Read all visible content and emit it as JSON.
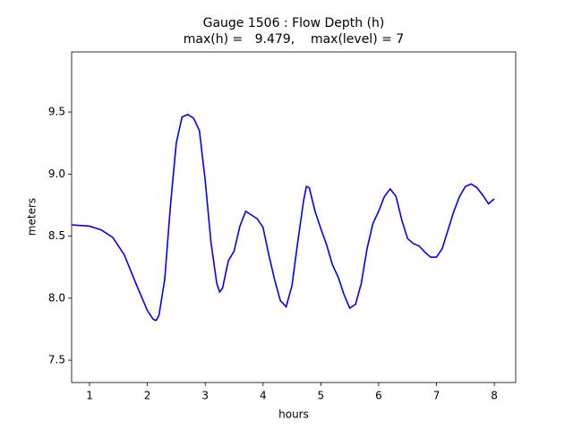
{
  "chart_data": {
    "type": "line",
    "title": "Gauge 1506 : Flow Depth (h)",
    "subtitle": "max(h) =   9.479,    max(level) = 7",
    "x_label": "hours",
    "y_label": "meters",
    "xlim": [
      0.69,
      8.37
    ],
    "ylim": [
      7.32,
      9.984
    ],
    "xticks": [
      1,
      2,
      3,
      4,
      5,
      6,
      7,
      8
    ],
    "yticks": [
      7.5,
      {
        "value": 8.0,
        "label": "8.0"
      },
      8.5,
      {
        "value": 9.0,
        "label": "9.0"
      },
      9.5
    ],
    "grid": false,
    "series": [
      {
        "name": "h",
        "color": "#0000ff",
        "x": [
          0.7,
          1.0,
          1.2,
          1.4,
          1.6,
          1.8,
          1.9,
          2.0,
          2.1,
          2.15,
          2.2,
          2.3,
          2.4,
          2.5,
          2.6,
          2.7,
          2.8,
          2.9,
          3.0,
          3.1,
          3.2,
          3.25,
          3.3,
          3.4,
          3.5,
          3.6,
          3.7,
          3.8,
          3.9,
          4.0,
          4.1,
          4.2,
          4.3,
          4.4,
          4.5,
          4.6,
          4.7,
          4.75,
          4.8,
          4.9,
          5.0,
          5.1,
          5.2,
          5.3,
          5.4,
          5.5,
          5.6,
          5.7,
          5.8,
          5.9,
          6.0,
          6.1,
          6.2,
          6.3,
          6.4,
          6.5,
          6.6,
          6.7,
          6.8,
          6.9,
          7.0,
          7.1,
          7.2,
          7.3,
          7.4,
          7.5,
          7.6,
          7.7,
          7.8,
          7.9,
          8.0
        ],
        "values": [
          8.59,
          8.58,
          8.55,
          8.49,
          8.35,
          8.12,
          8.01,
          7.9,
          7.83,
          7.82,
          7.86,
          8.15,
          8.75,
          9.25,
          9.46,
          9.48,
          9.45,
          9.35,
          8.95,
          8.45,
          8.12,
          8.05,
          8.08,
          8.3,
          8.38,
          8.58,
          8.7,
          8.67,
          8.64,
          8.57,
          8.35,
          8.15,
          7.98,
          7.93,
          8.1,
          8.45,
          8.78,
          8.9,
          8.89,
          8.7,
          8.56,
          8.43,
          8.27,
          8.17,
          8.03,
          7.92,
          7.95,
          8.12,
          8.4,
          8.6,
          8.7,
          8.82,
          8.88,
          8.82,
          8.63,
          8.48,
          8.44,
          8.42,
          8.37,
          8.33,
          8.33,
          8.4,
          8.55,
          8.7,
          8.82,
          8.9,
          8.92,
          8.89,
          8.83,
          8.76,
          8.8
        ]
      }
    ]
  }
}
